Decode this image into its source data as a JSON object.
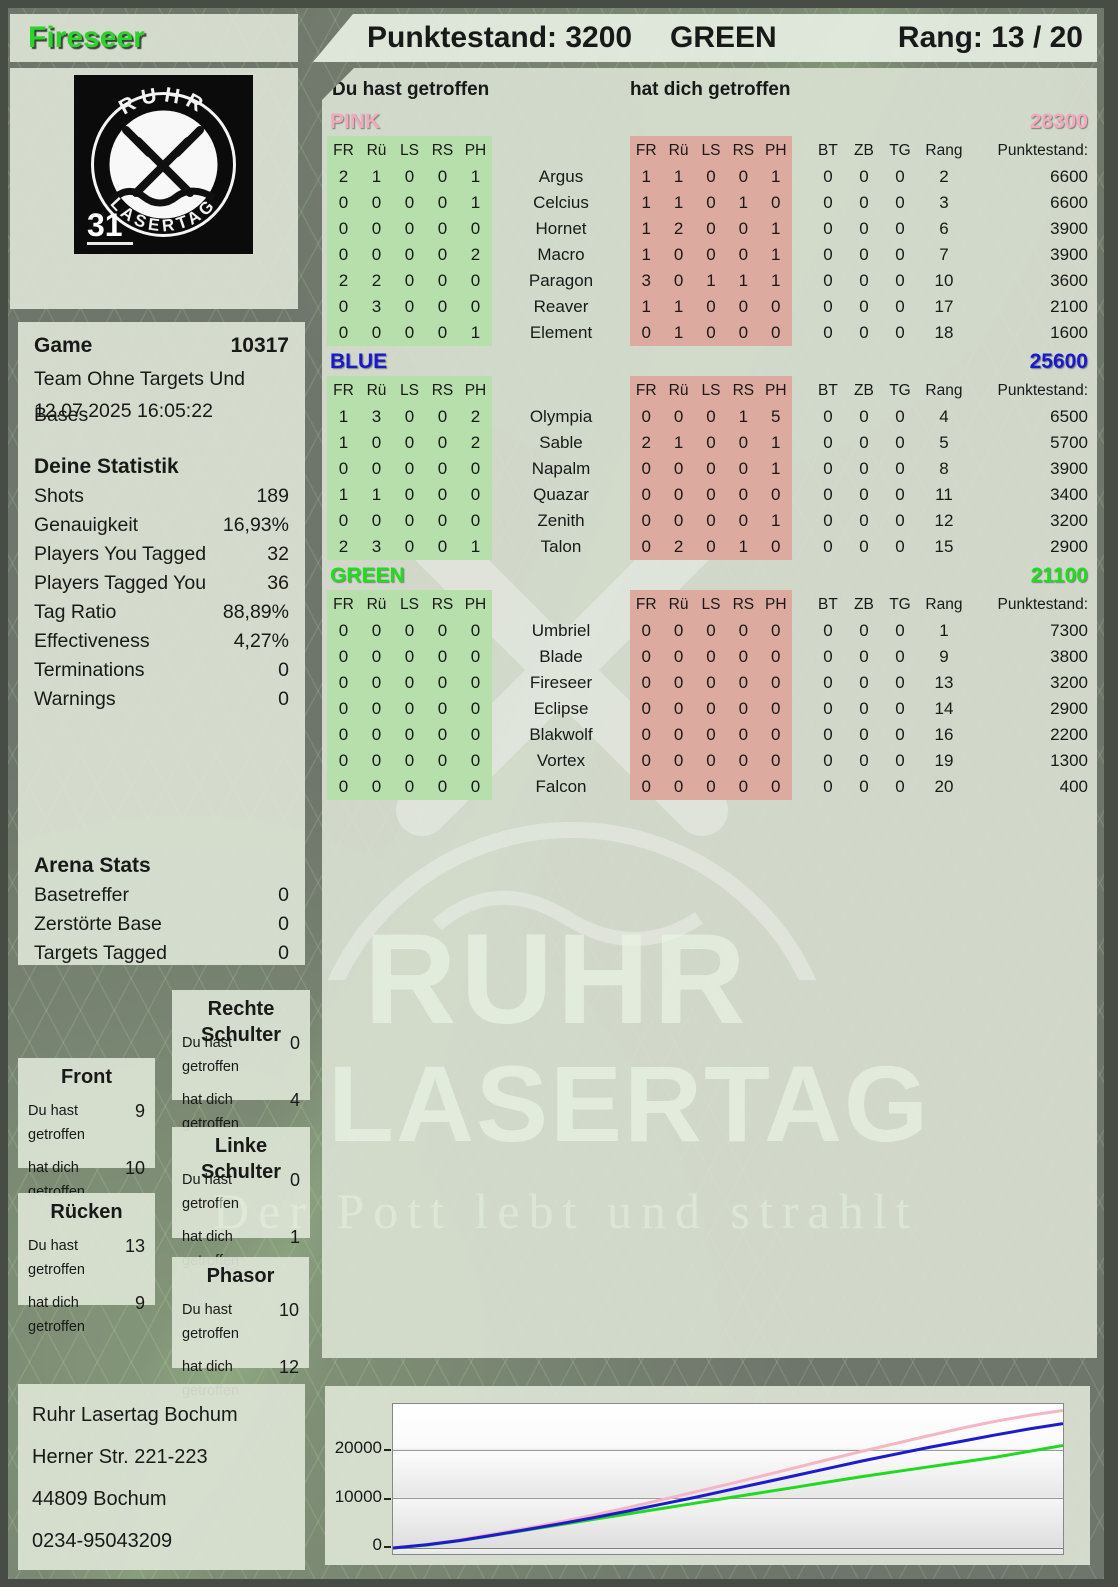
{
  "player": {
    "name": "Fireseer"
  },
  "header": {
    "punktestand": "Punktestand: 3200",
    "team": "GREEN",
    "rang": "Rang: 13 / 20"
  },
  "logo": {
    "arc_top": "RUHR",
    "arc_bottom": "LASERTAG",
    "badge": "31"
  },
  "labels": {
    "you_hit": "Du hast getroffen",
    "hit_you": "hat dich getroffen"
  },
  "game": {
    "label": "Game",
    "id": "10317",
    "mode": "Team Ohne Targets Und Bases",
    "datetime": "12.07.2025 16:05:22"
  },
  "your_stats": {
    "title": "Deine Statistik",
    "rows": [
      {
        "label": "Shots",
        "value": "189"
      },
      {
        "label": "Genauigkeit",
        "value": "16,93%"
      },
      {
        "label": "Players You Tagged",
        "value": "32"
      },
      {
        "label": "Players Tagged You",
        "value": "36"
      },
      {
        "label": "Tag Ratio",
        "value": "88,89%"
      },
      {
        "label": "Effectiveness",
        "value": "4,27%"
      },
      {
        "label": "Terminations",
        "value": "0"
      },
      {
        "label": "Warnings",
        "value": "0"
      }
    ]
  },
  "arena_stats": {
    "title": "Arena Stats",
    "rows": [
      {
        "label": "Basetreffer",
        "value": "0"
      },
      {
        "label": "Zerstörte Base",
        "value": "0"
      },
      {
        "label": "Targets Tagged",
        "value": "0"
      }
    ]
  },
  "hit_zones": {
    "front": {
      "title": "Front",
      "you": "9",
      "them": "10"
    },
    "ruecken": {
      "title": "Rücken",
      "you": "13",
      "them": "9"
    },
    "rechte": {
      "title": "Rechte Schulter",
      "you": "0",
      "them": "4"
    },
    "linke": {
      "title": "Linke Schulter",
      "you": "0",
      "them": "1"
    },
    "phasor": {
      "title": "Phasor",
      "you": "10",
      "them": "12"
    }
  },
  "columns": {
    "hit": [
      "FR",
      "Rü",
      "LS",
      "RS",
      "PH"
    ],
    "extra": [
      "BT",
      "ZB",
      "TG",
      "Rang"
    ],
    "points": "Punktestand:"
  },
  "teams": [
    {
      "name": "PINK",
      "color": "#f2a9bd",
      "score": "28300",
      "players": [
        {
          "name": "Argus",
          "you": [
            2,
            1,
            0,
            0,
            1
          ],
          "them": [
            1,
            1,
            0,
            0,
            1
          ],
          "bt": 0,
          "zb": 0,
          "tg": 0,
          "rang": 2,
          "points": 6600
        },
        {
          "name": "Celcius",
          "you": [
            0,
            0,
            0,
            0,
            1
          ],
          "them": [
            1,
            1,
            0,
            1,
            0
          ],
          "bt": 0,
          "zb": 0,
          "tg": 0,
          "rang": 3,
          "points": 6600
        },
        {
          "name": "Hornet",
          "you": [
            0,
            0,
            0,
            0,
            0
          ],
          "them": [
            1,
            2,
            0,
            0,
            1
          ],
          "bt": 0,
          "zb": 0,
          "tg": 0,
          "rang": 6,
          "points": 3900
        },
        {
          "name": "Macro",
          "you": [
            0,
            0,
            0,
            0,
            2
          ],
          "them": [
            1,
            0,
            0,
            0,
            1
          ],
          "bt": 0,
          "zb": 0,
          "tg": 0,
          "rang": 7,
          "points": 3900
        },
        {
          "name": "Paragon",
          "you": [
            2,
            2,
            0,
            0,
            0
          ],
          "them": [
            3,
            0,
            1,
            1,
            1
          ],
          "bt": 0,
          "zb": 0,
          "tg": 0,
          "rang": 10,
          "points": 3600
        },
        {
          "name": "Reaver",
          "you": [
            0,
            3,
            0,
            0,
            0
          ],
          "them": [
            1,
            1,
            0,
            0,
            0
          ],
          "bt": 0,
          "zb": 0,
          "tg": 0,
          "rang": 17,
          "points": 2100
        },
        {
          "name": "Element",
          "you": [
            0,
            0,
            0,
            0,
            1
          ],
          "them": [
            0,
            1,
            0,
            0,
            0
          ],
          "bt": 0,
          "zb": 0,
          "tg": 0,
          "rang": 18,
          "points": 1600
        }
      ]
    },
    {
      "name": "BLUE",
      "color": "#1818cf",
      "score": "25600",
      "players": [
        {
          "name": "Olympia",
          "you": [
            1,
            3,
            0,
            0,
            2
          ],
          "them": [
            0,
            0,
            0,
            1,
            5
          ],
          "bt": 0,
          "zb": 0,
          "tg": 0,
          "rang": 4,
          "points": 6500
        },
        {
          "name": "Sable",
          "you": [
            1,
            0,
            0,
            0,
            2
          ],
          "them": [
            2,
            1,
            0,
            0,
            1
          ],
          "bt": 0,
          "zb": 0,
          "tg": 0,
          "rang": 5,
          "points": 5700
        },
        {
          "name": "Napalm",
          "you": [
            0,
            0,
            0,
            0,
            0
          ],
          "them": [
            0,
            0,
            0,
            0,
            1
          ],
          "bt": 0,
          "zb": 0,
          "tg": 0,
          "rang": 8,
          "points": 3900
        },
        {
          "name": "Quazar",
          "you": [
            1,
            1,
            0,
            0,
            0
          ],
          "them": [
            0,
            0,
            0,
            0,
            0
          ],
          "bt": 0,
          "zb": 0,
          "tg": 0,
          "rang": 11,
          "points": 3400
        },
        {
          "name": "Zenith",
          "you": [
            0,
            0,
            0,
            0,
            0
          ],
          "them": [
            0,
            0,
            0,
            0,
            1
          ],
          "bt": 0,
          "zb": 0,
          "tg": 0,
          "rang": 12,
          "points": 3200
        },
        {
          "name": "Talon",
          "you": [
            2,
            3,
            0,
            0,
            1
          ],
          "them": [
            0,
            2,
            0,
            1,
            0
          ],
          "bt": 0,
          "zb": 0,
          "tg": 0,
          "rang": 15,
          "points": 2900
        }
      ]
    },
    {
      "name": "GREEN",
      "color": "#1ddf1d",
      "score": "21100",
      "players": [
        {
          "name": "Umbriel",
          "you": [
            0,
            0,
            0,
            0,
            0
          ],
          "them": [
            0,
            0,
            0,
            0,
            0
          ],
          "bt": 0,
          "zb": 0,
          "tg": 0,
          "rang": 1,
          "points": 7300
        },
        {
          "name": "Blade",
          "you": [
            0,
            0,
            0,
            0,
            0
          ],
          "them": [
            0,
            0,
            0,
            0,
            0
          ],
          "bt": 0,
          "zb": 0,
          "tg": 0,
          "rang": 9,
          "points": 3800
        },
        {
          "name": "Fireseer",
          "you": [
            0,
            0,
            0,
            0,
            0
          ],
          "them": [
            0,
            0,
            0,
            0,
            0
          ],
          "bt": 0,
          "zb": 0,
          "tg": 0,
          "rang": 13,
          "points": 3200
        },
        {
          "name": "Eclipse",
          "you": [
            0,
            0,
            0,
            0,
            0
          ],
          "them": [
            0,
            0,
            0,
            0,
            0
          ],
          "bt": 0,
          "zb": 0,
          "tg": 0,
          "rang": 14,
          "points": 2900
        },
        {
          "name": "Blakwolf",
          "you": [
            0,
            0,
            0,
            0,
            0
          ],
          "them": [
            0,
            0,
            0,
            0,
            0
          ],
          "bt": 0,
          "zb": 0,
          "tg": 0,
          "rang": 16,
          "points": 2200
        },
        {
          "name": "Vortex",
          "you": [
            0,
            0,
            0,
            0,
            0
          ],
          "them": [
            0,
            0,
            0,
            0,
            0
          ],
          "bt": 0,
          "zb": 0,
          "tg": 0,
          "rang": 19,
          "points": 1300
        },
        {
          "name": "Falcon",
          "you": [
            0,
            0,
            0,
            0,
            0
          ],
          "them": [
            0,
            0,
            0,
            0,
            0
          ],
          "bt": 0,
          "zb": 0,
          "tg": 0,
          "rang": 20,
          "points": 400
        }
      ]
    }
  ],
  "watermark": {
    "line1": "RUHR",
    "line2": "LASERTAG",
    "line3": "Der Pott lebt und strahlt"
  },
  "address": {
    "lines": [
      "Ruhr Lasertag Bochum",
      "Herner Str. 221-223",
      "44809 Bochum",
      "0234-95043209"
    ]
  },
  "chart_data": {
    "type": "line",
    "title": "",
    "xlabel": "",
    "ylabel": "",
    "ylim": [
      0,
      29600
    ],
    "grid": true,
    "legend": "none",
    "yticks": [
      {
        "label": "20000",
        "value": 20000
      },
      {
        "label": "10000",
        "value": 10000
      },
      {
        "label": "0",
        "value": 0
      }
    ],
    "series": [
      {
        "name": "PINK",
        "color": "#f5b5c5",
        "values": [
          0,
          700,
          1700,
          2900,
          4100,
          5400,
          6800,
          8300,
          9900,
          11500,
          13100,
          14800,
          16500,
          18200,
          19900,
          21500,
          23100,
          24700,
          26100,
          27300,
          28300
        ]
      },
      {
        "name": "GREEN",
        "color": "#21d921",
        "values": [
          0,
          600,
          1500,
          2600,
          3700,
          4800,
          5900,
          7000,
          8100,
          9200,
          10300,
          11400,
          12500,
          13600,
          14700,
          15700,
          16700,
          17700,
          18700,
          19900,
          21100
        ]
      },
      {
        "name": "BLUE",
        "color": "#1c1ccc",
        "values": [
          0,
          650,
          1550,
          2650,
          3800,
          5000,
          6250,
          7600,
          9000,
          10400,
          11900,
          13400,
          14900,
          16400,
          17900,
          19300,
          20700,
          22000,
          23300,
          24500,
          25600
        ]
      }
    ]
  }
}
